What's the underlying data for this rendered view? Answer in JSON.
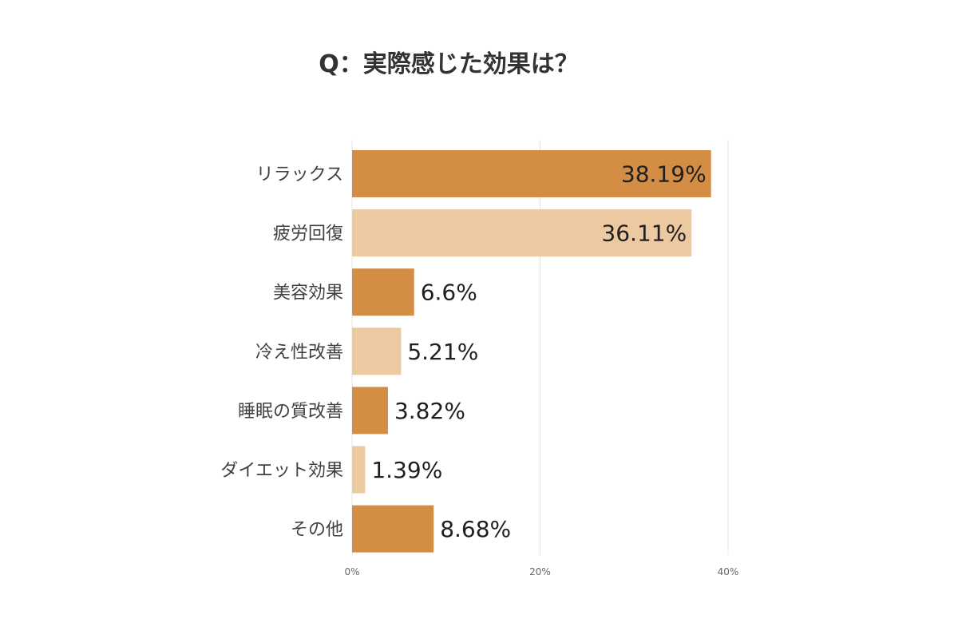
{
  "chart_data": {
    "type": "bar",
    "orientation": "horizontal",
    "title": "Q：実際感じた効果は？",
    "categories": [
      "リラックス",
      "疲労回復",
      "美容効果",
      "冷え性改善",
      "睡眠の質改善",
      "ダイエット効果",
      "その他"
    ],
    "values": [
      38.19,
      36.11,
      6.6,
      5.21,
      3.82,
      1.39,
      8.68
    ],
    "value_labels": [
      "38.19%",
      "36.11%",
      "6.6%",
      "5.21%",
      "3.82%",
      "1.39%",
      "8.68%"
    ],
    "bar_colors": [
      "#d38d45",
      "#edc9a2",
      "#d38d45",
      "#edc9a2",
      "#d38d45",
      "#edc9a2",
      "#d38d45"
    ],
    "xlim": [
      0,
      40
    ],
    "xticks": [
      0,
      20,
      40
    ],
    "xtick_labels": [
      "0%",
      "20%",
      "40%"
    ],
    "grid": true,
    "legend": "none"
  }
}
